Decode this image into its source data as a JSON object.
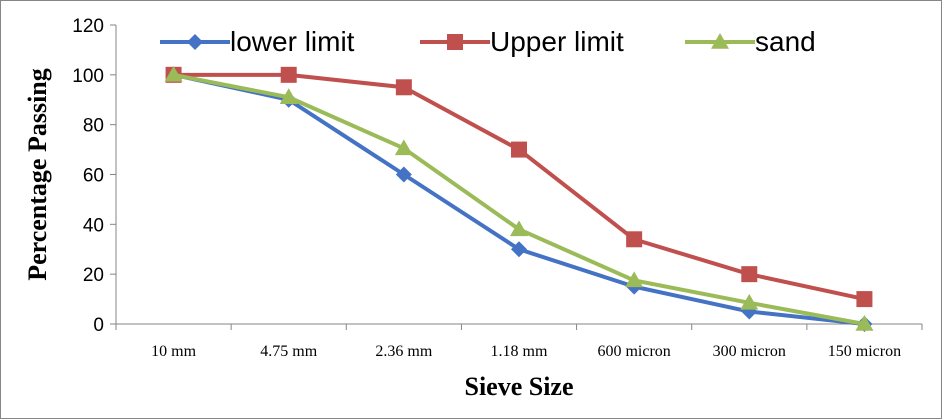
{
  "chart_data": {
    "type": "line",
    "title": "",
    "xlabel": "Sieve Size",
    "ylabel": "Percentage Passing",
    "categories": [
      "10 mm",
      "4.75 mm",
      "2.36 mm",
      "1.18 mm",
      "600 micron",
      "300 micron",
      "150 micron"
    ],
    "ylim": [
      0,
      120
    ],
    "yticks": [
      "0",
      "20",
      "40",
      "60",
      "80",
      "100",
      "120"
    ],
    "grid": false,
    "legend": "top",
    "series": [
      {
        "name": "lower limit",
        "color": "#4472C4",
        "marker": "diamond",
        "values": [
          100,
          90,
          60,
          30,
          15,
          5,
          0
        ]
      },
      {
        "name": "Upper limit",
        "color": "#C0504D",
        "marker": "square",
        "values": [
          100,
          100,
          95,
          70,
          34,
          20,
          10
        ]
      },
      {
        "name": "sand",
        "color": "#9BBB59",
        "marker": "triangle",
        "values": [
          100,
          91,
          70.5,
          38,
          17.5,
          8.5,
          0
        ]
      }
    ]
  }
}
